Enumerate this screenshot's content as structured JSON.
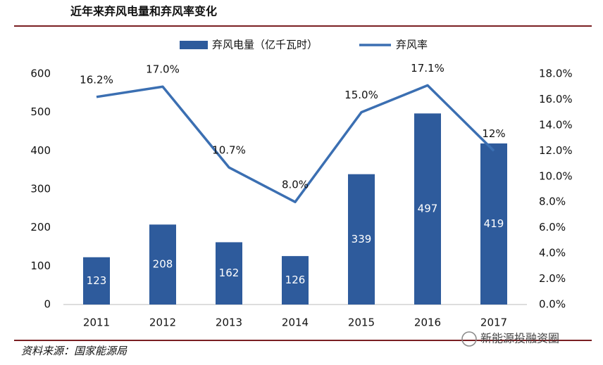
{
  "chart_data": {
    "type": "bar-line",
    "title": "近年来弃风电量和弃风率变化",
    "source": "资料来源：国家能源局",
    "watermark": "新能源投融资圈",
    "categories": [
      "2011",
      "2012",
      "2013",
      "2014",
      "2015",
      "2016",
      "2017"
    ],
    "series": [
      {
        "name": "弃风电量（亿千瓦时）",
        "type": "bar",
        "color": "#2e5b9c",
        "values": [
          123,
          208,
          162,
          126,
          339,
          497,
          419
        ]
      },
      {
        "name": "弃风率",
        "type": "line",
        "axis": "y2",
        "color": "#3b6fb2",
        "values": [
          16.2,
          17.0,
          10.7,
          8.0,
          15.0,
          17.1,
          12
        ],
        "value_labels": [
          "16.2%",
          "17.0%",
          "10.7%",
          "8.0%",
          "15.0%",
          "17.1%",
          "12%"
        ]
      }
    ],
    "ylim": [
      0,
      600
    ],
    "yticks": [
      0,
      100,
      200,
      300,
      400,
      500,
      600
    ],
    "y2lim": [
      0,
      18
    ],
    "y2ticks": [
      {
        "value": 0,
        "label": "0.0%"
      },
      {
        "value": 2,
        "label": "2.0%"
      },
      {
        "value": 4,
        "label": "4.0%"
      },
      {
        "value": 6,
        "label": "6.0%"
      },
      {
        "value": 8,
        "label": "8.0%"
      },
      {
        "value": 10,
        "label": "10.0%"
      },
      {
        "value": 12,
        "label": "12.0%"
      },
      {
        "value": 14,
        "label": "14.0%"
      },
      {
        "value": 16,
        "label": "16.0%"
      },
      {
        "value": 18,
        "label": "18.0%"
      }
    ],
    "legend": "top"
  }
}
